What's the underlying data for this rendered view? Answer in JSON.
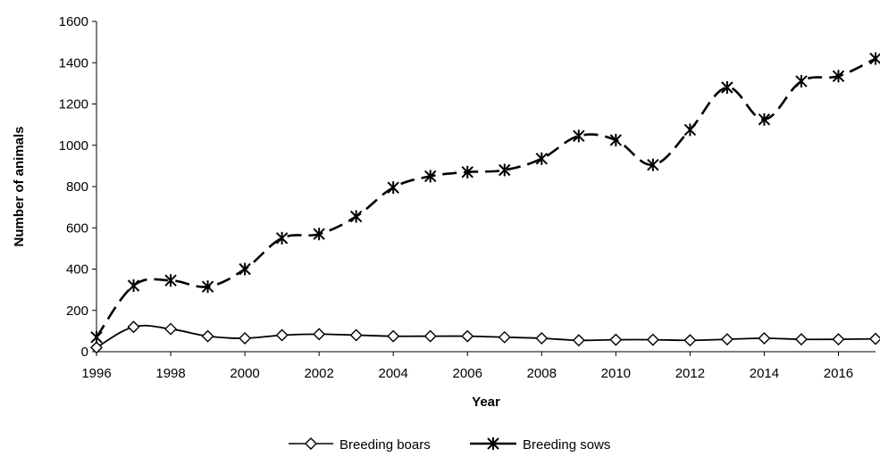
{
  "chart_data": {
    "type": "line",
    "title": "",
    "xlabel": "Year",
    "ylabel": "Number of animals",
    "x": [
      1996,
      1997,
      1998,
      1999,
      2000,
      2001,
      2002,
      2003,
      2004,
      2005,
      2006,
      2007,
      2008,
      2009,
      2010,
      2011,
      2012,
      2013,
      2014,
      2015,
      2016,
      2017
    ],
    "xlim": [
      1996,
      2017
    ],
    "ylim": [
      0,
      1600
    ],
    "xticks": [
      1996,
      1998,
      2000,
      2002,
      2004,
      2006,
      2008,
      2010,
      2012,
      2014,
      2016
    ],
    "yticks": [
      0,
      200,
      400,
      600,
      800,
      1000,
      1200,
      1400,
      1600
    ],
    "grid": false,
    "legend_position": "bottom",
    "series": [
      {
        "name": "Breeding boars",
        "marker": "diamond",
        "line_style": "solid",
        "color": "#000000",
        "values": [
          20,
          120,
          110,
          75,
          65,
          80,
          85,
          80,
          75,
          75,
          75,
          70,
          65,
          55,
          58,
          58,
          55,
          60,
          65,
          60,
          60,
          62
        ]
      },
      {
        "name": "Breeding sows",
        "marker": "asterisk",
        "line_style": "dashed",
        "color": "#000000",
        "values": [
          70,
          320,
          345,
          315,
          400,
          550,
          570,
          655,
          795,
          850,
          870,
          880,
          935,
          1045,
          1025,
          905,
          1075,
          1280,
          1125,
          1310,
          1335,
          1420
        ]
      }
    ]
  }
}
